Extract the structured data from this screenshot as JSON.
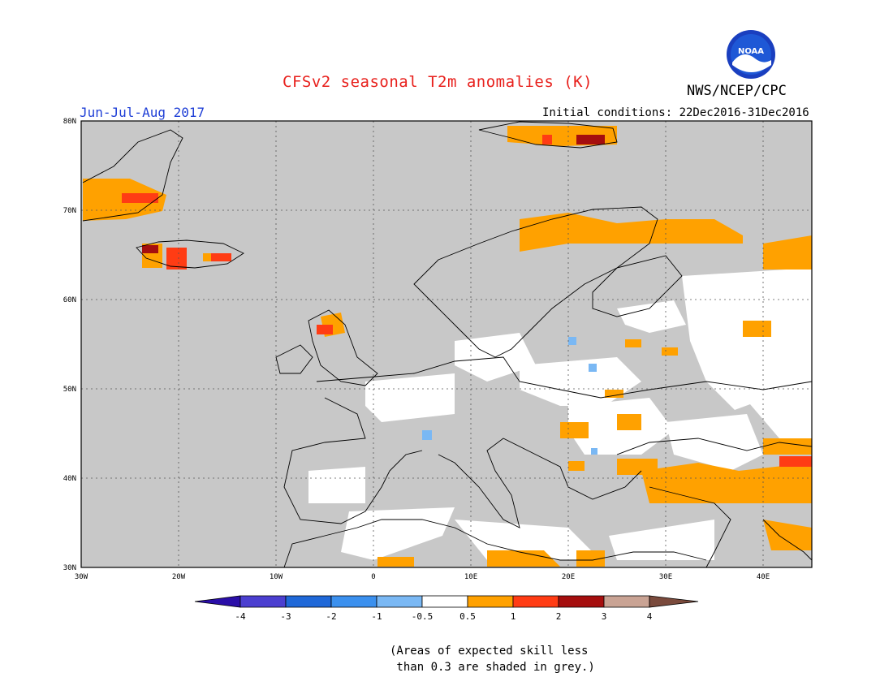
{
  "header": {
    "title": "CFSv2 seasonal T2m anomalies (K)",
    "org": "NWS/NCEP/CPC",
    "period": "Jun-Jul-Aug 2017",
    "initial_conditions": "Initial conditions: 22Dec2016-31Dec2016",
    "logo_text": "NOAA"
  },
  "map": {
    "lat_ticks": [
      "80N",
      "70N",
      "60N",
      "50N",
      "40N",
      "30N"
    ],
    "lon_ticks": [
      "30W",
      "20W",
      "10W",
      "0",
      "10E",
      "20E",
      "30E",
      "40E"
    ],
    "region": "Europe",
    "grey_meaning": "skill < 0.3"
  },
  "colorbar": {
    "labels": [
      "-4",
      "-3",
      "-2",
      "-1",
      "-0.5",
      "0.5",
      "1",
      "2",
      "3",
      "4"
    ],
    "colors": [
      "#2a0ea8",
      "#4b3fd0",
      "#1f68d8",
      "#3b90ee",
      "#7ab8f4",
      "#ffffff",
      "#ffa100",
      "#ff3c14",
      "#a50e0e",
      "#c9a394",
      "#7a4a3c"
    ]
  },
  "footnote": "(Areas of expected skill less\n than 0.3 are shaded in grey.)"
}
